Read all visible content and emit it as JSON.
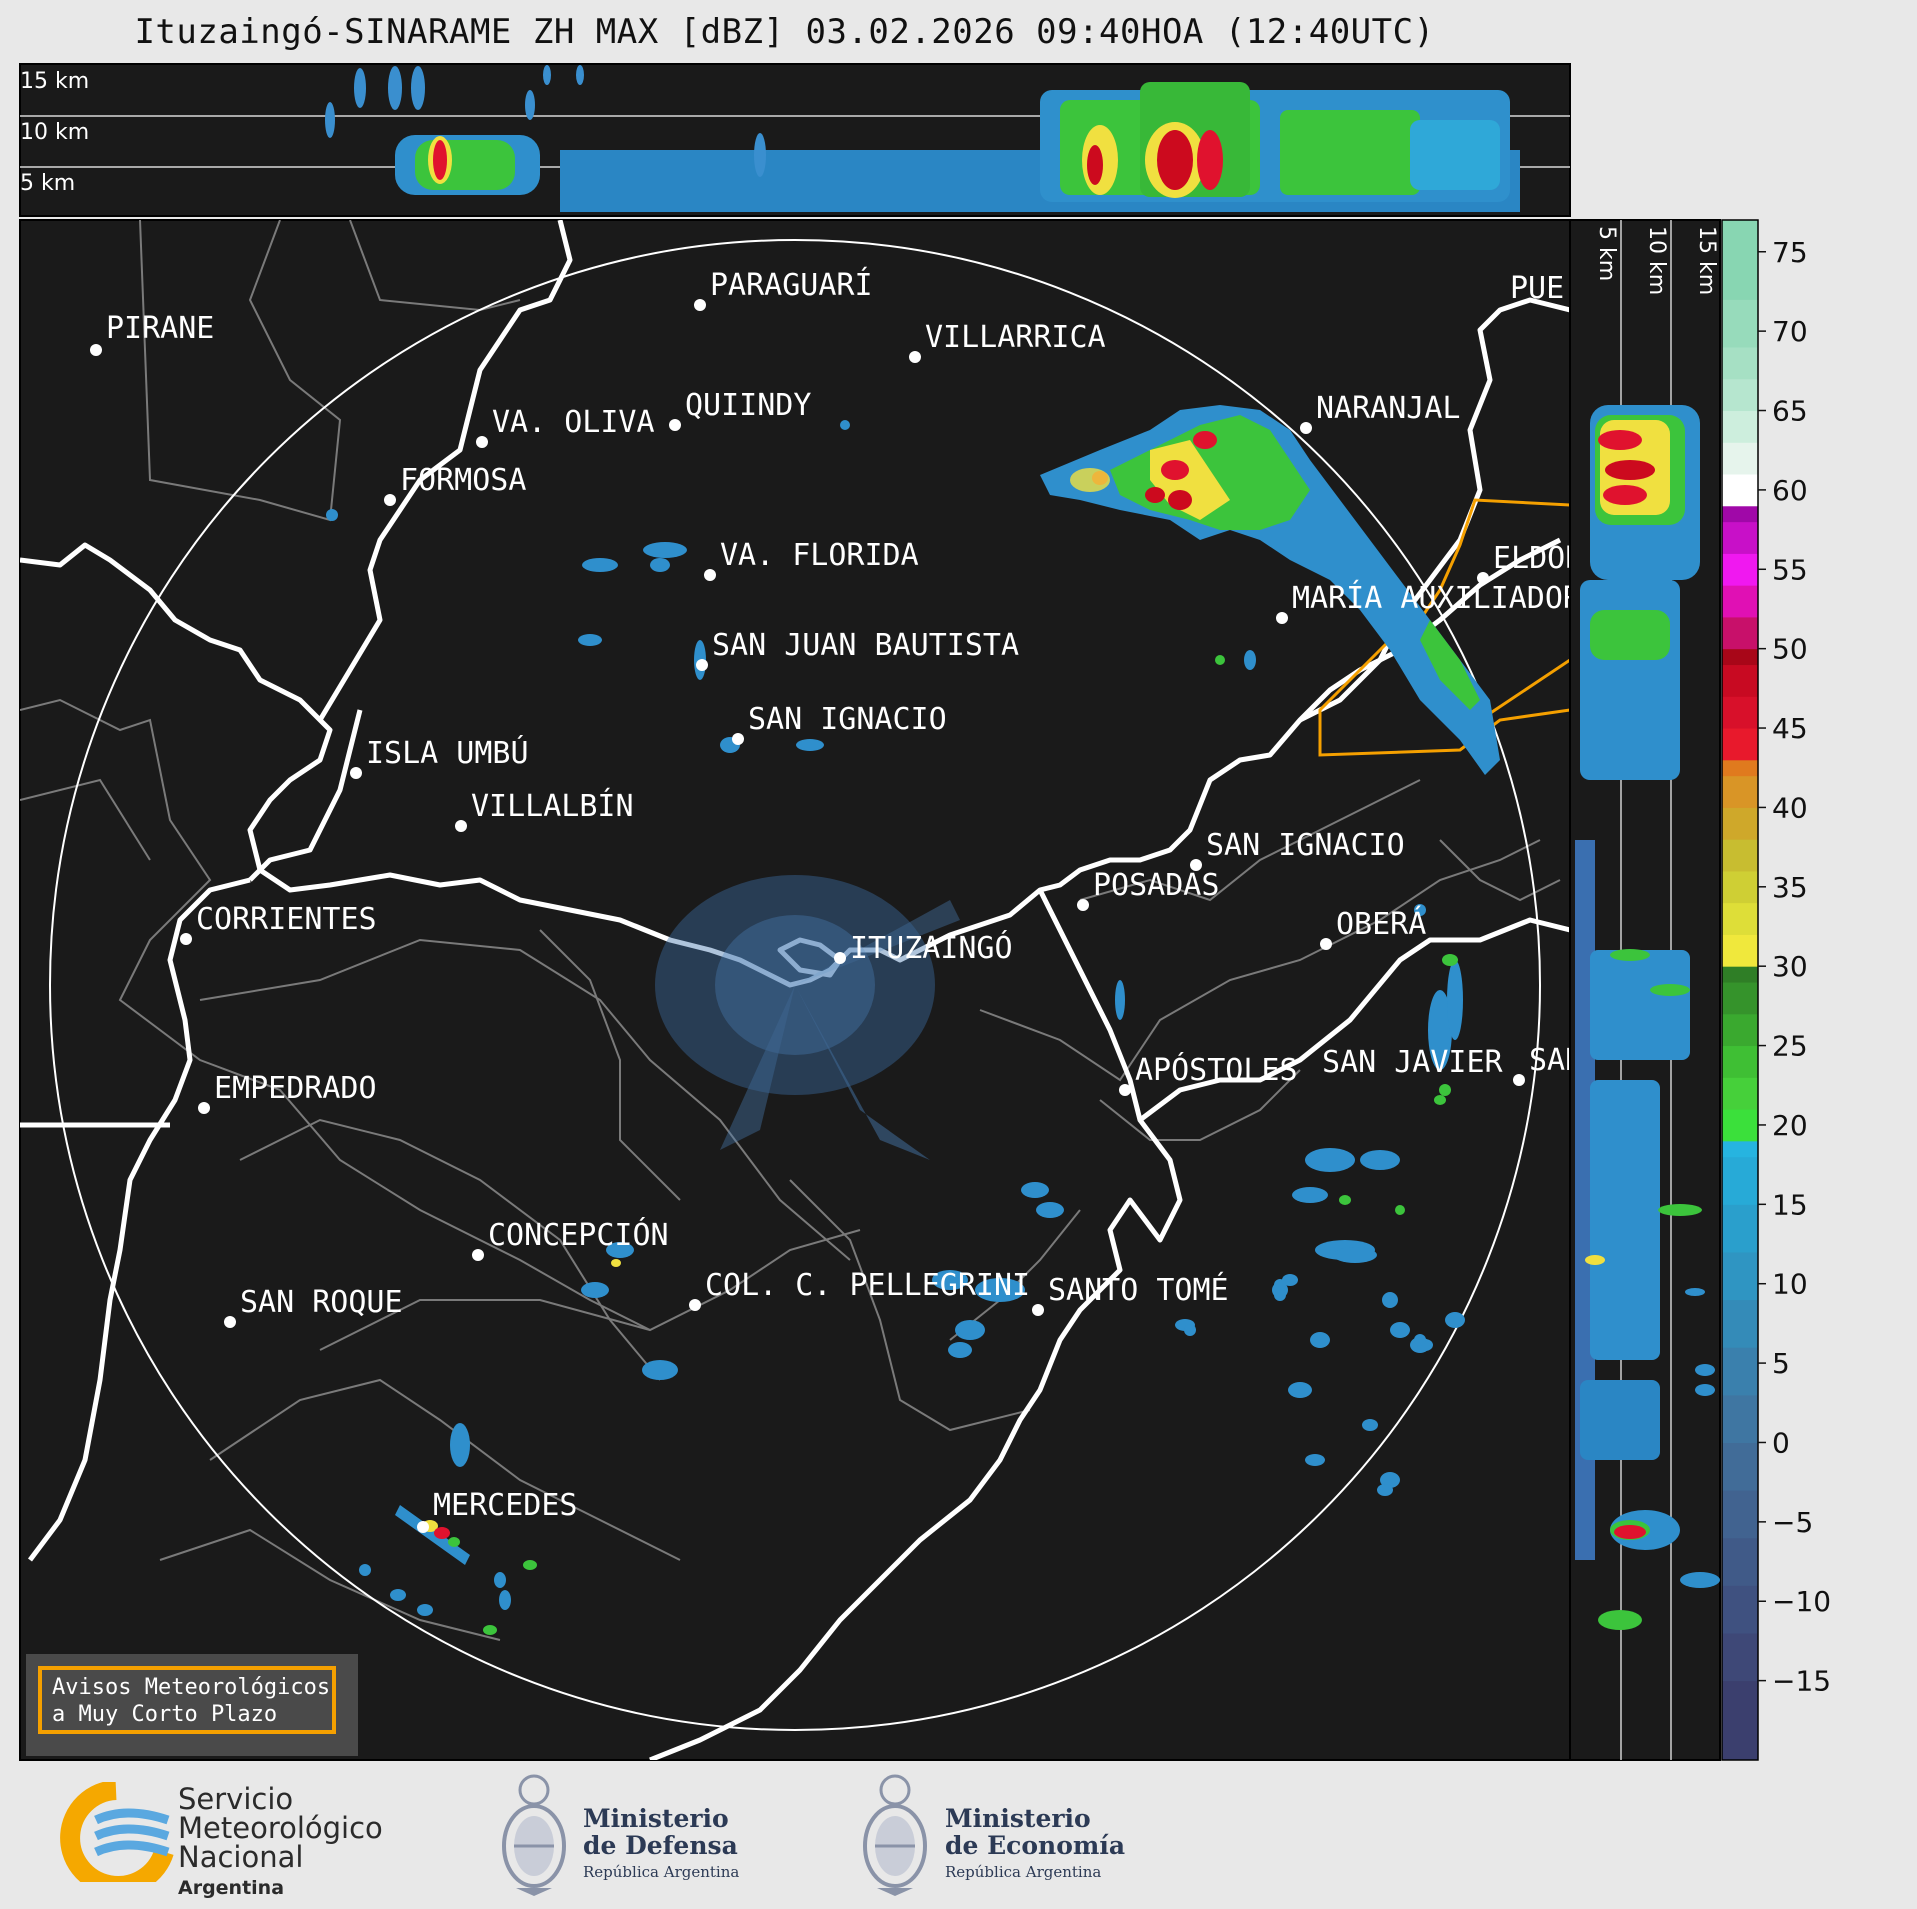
{
  "title": "Ituzaingó-SINARAME ZH MAX [dBZ] 03.02.2026 09:40HOA (12:40UTC)",
  "top_profile": {
    "altitude_labels": [
      "15 km",
      "10 km",
      "5 km"
    ]
  },
  "side_profile": {
    "altitude_labels": [
      "5 km",
      "10 km",
      "15 km"
    ]
  },
  "colorbar": {
    "ticks": [
      "75",
      "70",
      "65",
      "60",
      "55",
      "50",
      "45",
      "40",
      "35",
      "30",
      "25",
      "20",
      "15",
      "10",
      "5",
      "0",
      "−5",
      "−10",
      "−15"
    ],
    "range": [
      -20,
      77
    ]
  },
  "cities": [
    {
      "name": "PIRANE"
    },
    {
      "name": "PARAGUARÍ"
    },
    {
      "name": "VILLARRICA"
    },
    {
      "name": "VA. OLIVA"
    },
    {
      "name": "QUIINDY"
    },
    {
      "name": "NARANJAL"
    },
    {
      "name": "FORMOSA"
    },
    {
      "name": "VA. FLORIDA"
    },
    {
      "name": "ELDOR"
    },
    {
      "name": "MARÍA AUXILIADOR"
    },
    {
      "name": "SAN JUAN BAUTISTA"
    },
    {
      "name": "SAN IGNACIO"
    },
    {
      "name": "ISLA UMBÚ"
    },
    {
      "name": "VILLALBÍN"
    },
    {
      "name": "SAN IGNACIO"
    },
    {
      "name": "POSADAS"
    },
    {
      "name": "CORRIENTES"
    },
    {
      "name": "ITUZAINGÓ"
    },
    {
      "name": "OBERÁ"
    },
    {
      "name": "APÓSTOLES"
    },
    {
      "name": "SAN JAVIER"
    },
    {
      "name": "SAN"
    },
    {
      "name": "EMPEDRADO"
    },
    {
      "name": "CONCEPCIÓN"
    },
    {
      "name": "COL. C. PELLEGRINI"
    },
    {
      "name": "SANTO TOMÉ"
    },
    {
      "name": "SAN ROQUE"
    },
    {
      "name": "MERCEDES"
    },
    {
      "name": "PUE"
    }
  ],
  "warning_box": {
    "line1": "Avisos Meteorológicos",
    "line2": "a Muy Corto Plazo"
  },
  "logos": {
    "smn": {
      "line1": "Servicio",
      "line2": "Meteorológico",
      "line3": "Nacional",
      "sub": "Argentina"
    },
    "defensa": {
      "line1": "Ministerio",
      "line2": "de Defensa",
      "sub": "República Argentina"
    },
    "economia": {
      "line1": "Ministerio",
      "line2": "de Economía",
      "sub": "República Argentina"
    }
  },
  "colors": {
    "background": "#1a1a1a",
    "range_ring": "#ffffff",
    "border_orange": "#f5a000"
  }
}
